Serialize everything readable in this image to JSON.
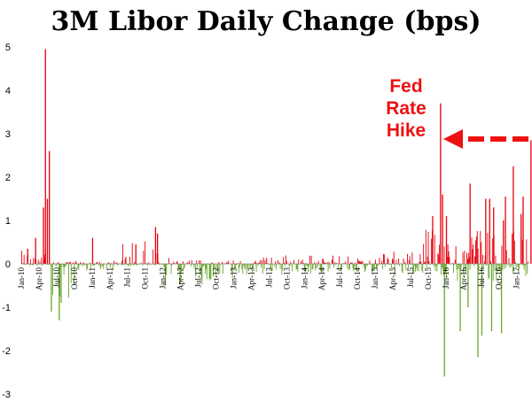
{
  "chart_data": {
    "type": "bar",
    "title": "3M Libor Daily Change (bps)",
    "xlabel": "",
    "ylabel": "",
    "ylim": [
      -3,
      5
    ],
    "y_ticks": [
      -3,
      -2,
      -1,
      0,
      1,
      2,
      3,
      4,
      5
    ],
    "grid": false,
    "legend": "none",
    "x_start_label": "Jan-10",
    "x_end_label": "Mar-17",
    "x_tick_labels": [
      "Jan-10",
      "Apr-10",
      "Jul-10",
      "Oct-10",
      "Jan-11",
      "Apr-11",
      "Jul-11",
      "Oct-11",
      "Jan-12",
      "Apr-12",
      "Jul-12",
      "Oct-12",
      "Jan-13",
      "Apr-13",
      "Jul-13",
      "Oct-13",
      "Jan-14",
      "Apr-14",
      "Jul-14",
      "Oct-14",
      "Jan-15",
      "Apr-15",
      "Jul-15",
      "Oct-15",
      "Jan-16",
      "Apr-16",
      "Jul-16",
      "Oct-16",
      "Jan-17"
    ],
    "colors": {
      "positive": "#e8000b",
      "negative": "#6aa82e",
      "annotation": "#ee1111"
    },
    "annotation": {
      "lines": [
        "Fed",
        "Rate",
        "Hike"
      ],
      "arrow_color": "#ee1111"
    },
    "regimes": [
      {
        "from": "Jan-10",
        "to": "Mar-10",
        "pos_max": 0.35,
        "neg_max": 0.05
      },
      {
        "from": "Mar-10",
        "to": "Jun-10",
        "pos_max": 1.0,
        "neg_max": 0.05
      },
      {
        "from": "Jun-10",
        "to": "Oct-10",
        "pos_max": 0.05,
        "neg_max": 0.9
      },
      {
        "from": "Oct-10",
        "to": "Jun-11",
        "pos_max": 0.08,
        "neg_max": 0.15
      },
      {
        "from": "Jun-11",
        "to": "Jan-12",
        "pos_max": 0.6,
        "neg_max": 0.05
      },
      {
        "from": "Jan-12",
        "to": "Mar-12",
        "pos_max": 0.15,
        "neg_max": 0.3
      },
      {
        "from": "Mar-12",
        "to": "Jan-13",
        "pos_max": 0.1,
        "neg_max": 0.5
      },
      {
        "from": "Jan-13",
        "to": "Jan-15",
        "pos_max": 0.2,
        "neg_max": 0.25
      },
      {
        "from": "Jan-15",
        "to": "Sep-15",
        "pos_max": 0.3,
        "neg_max": 0.3
      },
      {
        "from": "Sep-15",
        "to": "Jan-16",
        "pos_max": 0.8,
        "neg_max": 0.3
      },
      {
        "from": "Jan-16",
        "to": "Mar-16",
        "pos_max": 0.5,
        "neg_max": 0.4
      },
      {
        "from": "Mar-16",
        "to": "Oct-16",
        "pos_max": 0.9,
        "neg_max": 0.4
      },
      {
        "from": "Oct-16",
        "to": "Mar-17",
        "pos_max": 0.8,
        "neg_max": 0.3
      }
    ],
    "spikes": [
      {
        "date": "Feb-10",
        "value": 0.35
      },
      {
        "date": "Mar-10",
        "value": 0.6
      },
      {
        "date": "Apr-10",
        "value": 1.3
      },
      {
        "date": "May-10",
        "value": 4.95
      },
      {
        "date": "May-10",
        "value": 1.5
      },
      {
        "date": "May-10",
        "value": 2.6
      },
      {
        "date": "Jun-10",
        "value": -1.1
      },
      {
        "date": "Jul-10",
        "value": -1.3
      },
      {
        "date": "Jul-10",
        "value": -0.9
      },
      {
        "date": "Jan-11",
        "value": 0.6
      },
      {
        "date": "Aug-11",
        "value": 0.45
      },
      {
        "date": "Nov-11",
        "value": 0.85
      },
      {
        "date": "Dec-11",
        "value": 0.7
      },
      {
        "date": "Jan-12",
        "value": -0.5
      },
      {
        "date": "Oct-15",
        "value": 1.1
      },
      {
        "date": "Dec-15",
        "value": 3.7
      },
      {
        "date": "Dec-15",
        "value": 1.6
      },
      {
        "date": "Dec-15",
        "value": -2.6
      },
      {
        "date": "Jan-16",
        "value": 1.1
      },
      {
        "date": "Mar-16",
        "value": -1.55
      },
      {
        "date": "Apr-16",
        "value": -1.0
      },
      {
        "date": "May-16",
        "value": 1.85
      },
      {
        "date": "Jun-16",
        "value": -2.15
      },
      {
        "date": "Jul-16",
        "value": 1.5
      },
      {
        "date": "Jul-16",
        "value": -1.65
      },
      {
        "date": "Aug-16",
        "value": 1.5
      },
      {
        "date": "Aug-16",
        "value": -1.55
      },
      {
        "date": "Sep-16",
        "value": 1.3
      },
      {
        "date": "Oct-16",
        "value": -1.6
      },
      {
        "date": "Oct-16",
        "value": 1.0
      },
      {
        "date": "Nov-16",
        "value": 1.55
      },
      {
        "date": "Dec-16",
        "value": 2.25
      },
      {
        "date": "Jan-17",
        "value": 1.15
      },
      {
        "date": "Feb-17",
        "value": 1.55
      },
      {
        "date": "Mar-17",
        "value": 2.85
      }
    ]
  }
}
